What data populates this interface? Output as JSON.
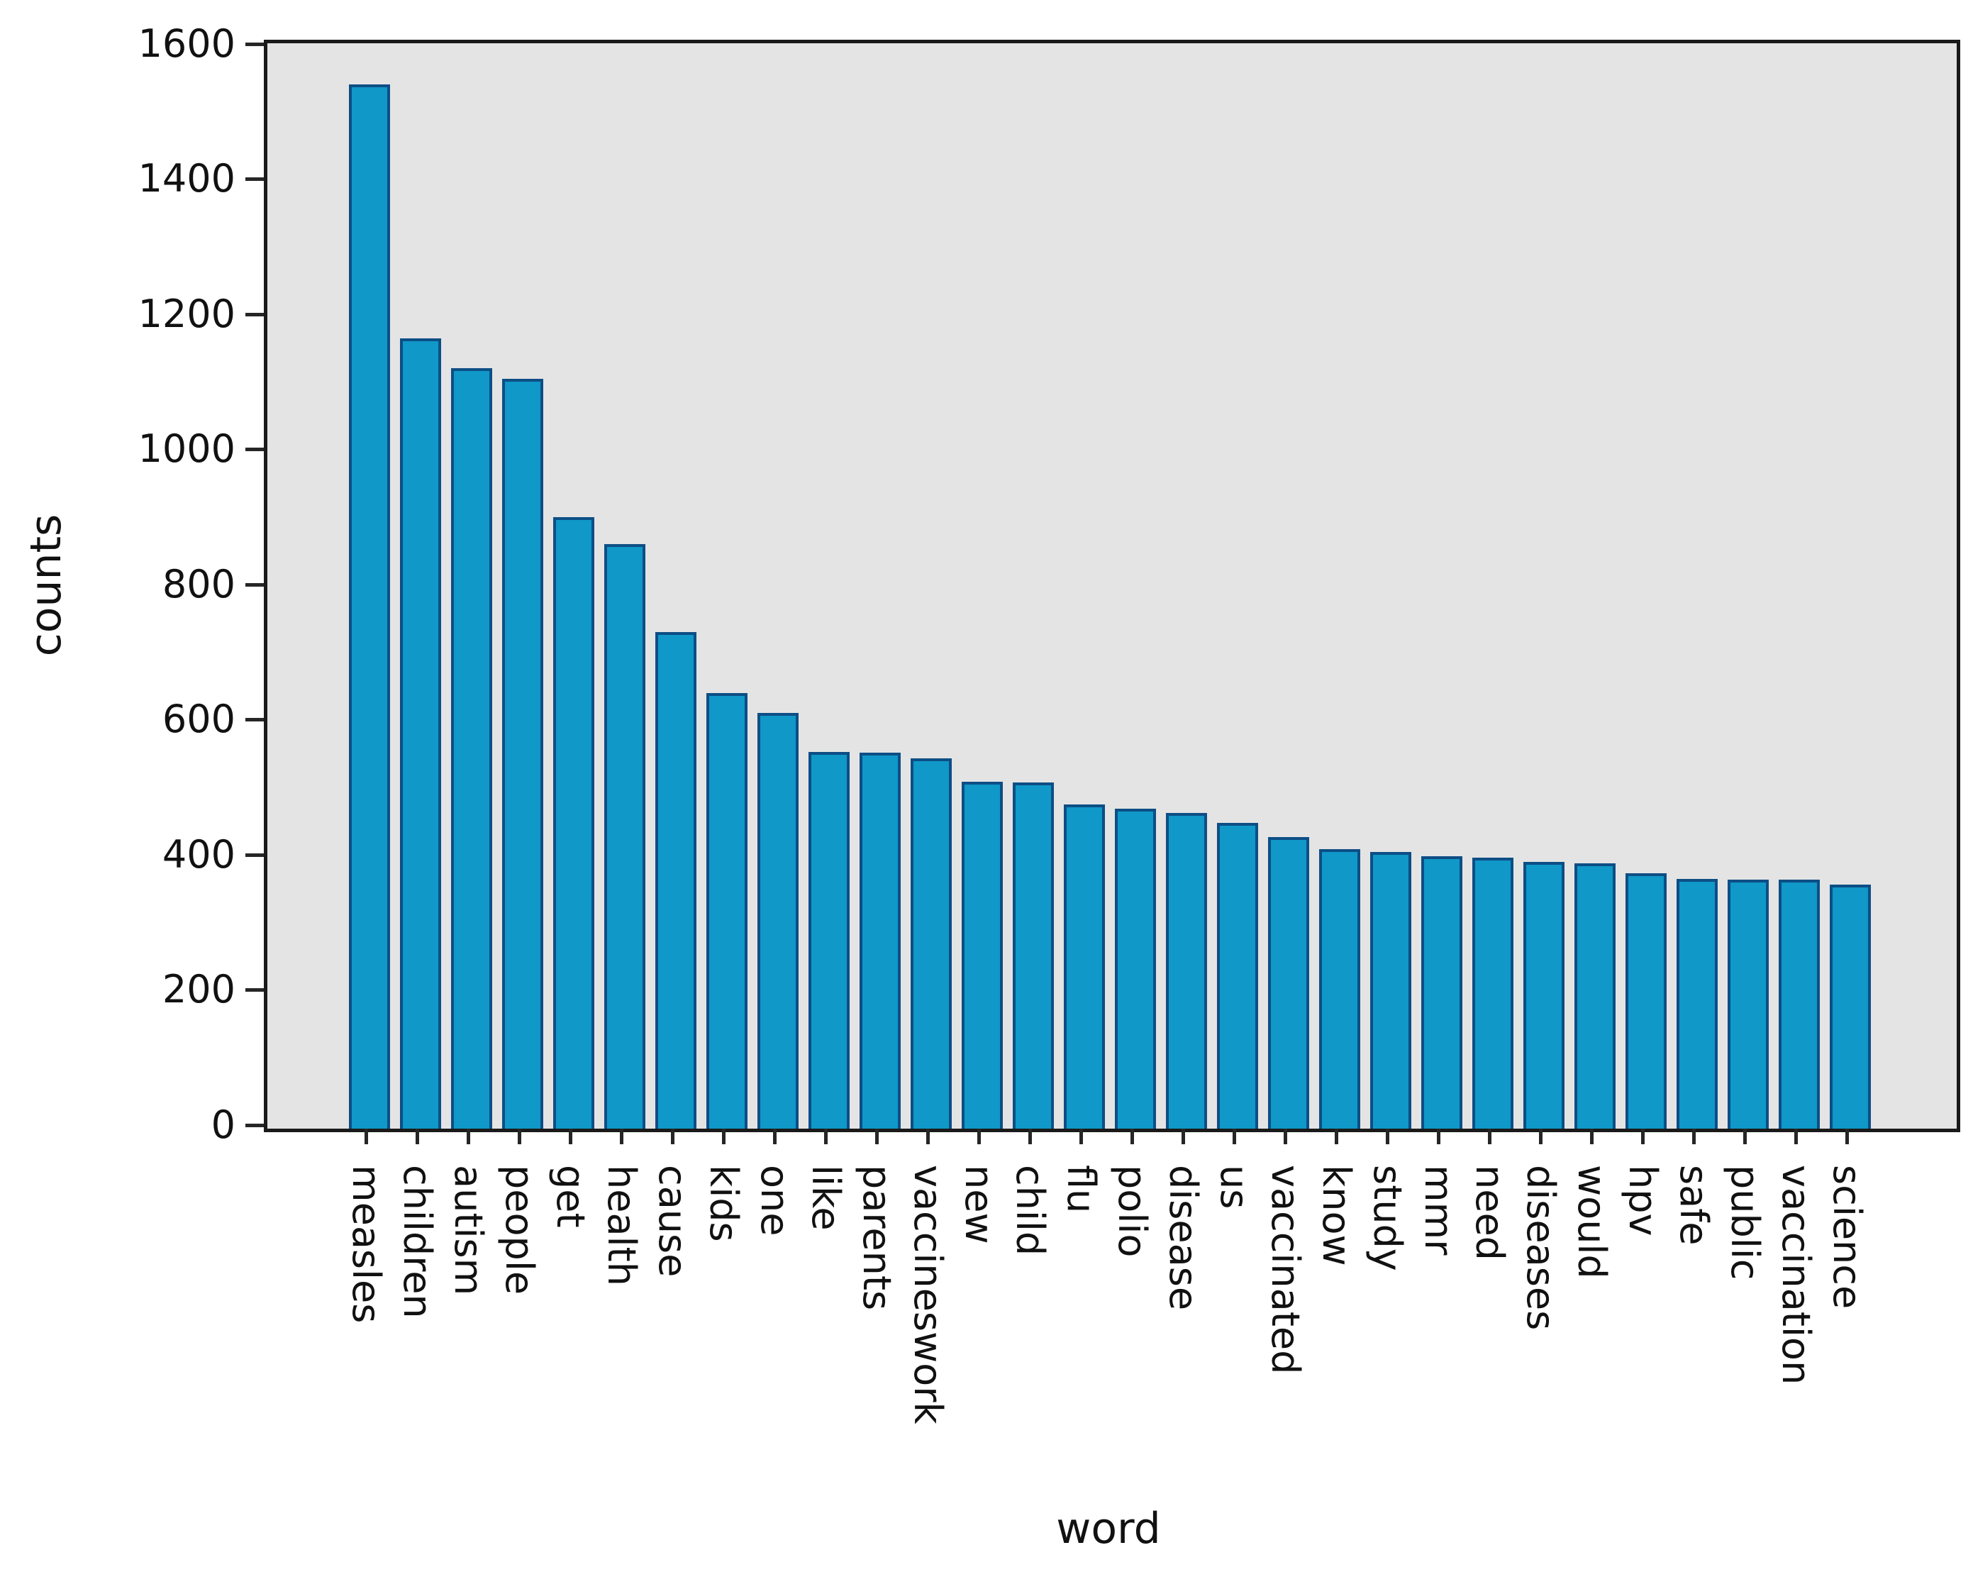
{
  "chart_data": {
    "type": "bar",
    "title": "",
    "xlabel": "word",
    "ylabel": "counts",
    "categories": [
      "measles",
      "children",
      "autism",
      "people",
      "get",
      "health",
      "cause",
      "kids",
      "one",
      "like",
      "parents",
      "vaccineswork",
      "new",
      "child",
      "flu",
      "polio",
      "disease",
      "us",
      "vaccinated",
      "know",
      "study",
      "mmr",
      "need",
      "diseases",
      "would",
      "hpv",
      "safe",
      "public",
      "vaccination",
      "science"
    ],
    "values": [
      1545,
      1170,
      1125,
      1110,
      905,
      865,
      735,
      645,
      615,
      557,
      556,
      548,
      513,
      512,
      480,
      473,
      467,
      452,
      431,
      414,
      409,
      403,
      401,
      395,
      393,
      378,
      370,
      369,
      368,
      361
    ],
    "ylim": [
      0,
      1600
    ],
    "yticks": [
      0,
      200,
      400,
      600,
      800,
      1000,
      1200,
      1400,
      1600
    ],
    "grid": false,
    "legend": null,
    "colors": {
      "bar_fill": "#0f98c8",
      "bar_edge": "#0d4e85",
      "plot_background": "#e4e4e4",
      "frame": "#1a1a1a",
      "text": "#111111"
    }
  }
}
